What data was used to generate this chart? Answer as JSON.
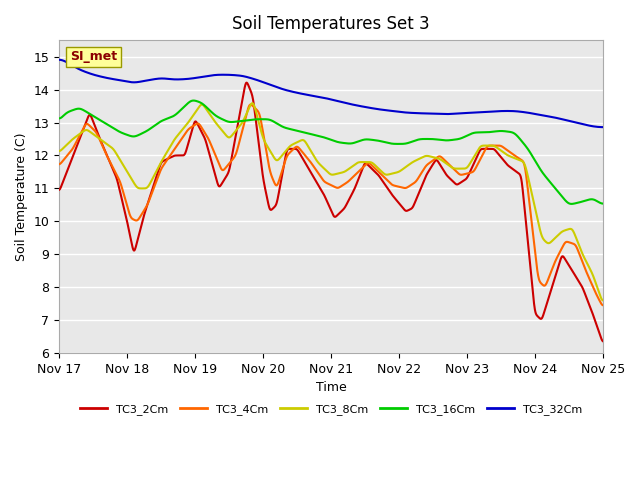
{
  "title": "Soil Temperatures Set 3",
  "xlabel": "Time",
  "ylabel": "Soil Temperature (C)",
  "ylim": [
    6.0,
    15.5
  ],
  "yticks": [
    6.0,
    7.0,
    8.0,
    9.0,
    10.0,
    11.0,
    12.0,
    13.0,
    14.0,
    15.0
  ],
  "xtick_labels": [
    "Nov 17",
    "Nov 18",
    "Nov 19",
    "Nov 20",
    "Nov 21",
    "Nov 22",
    "Nov 23",
    "Nov 24",
    "Nov 25"
  ],
  "colors": {
    "TC3_2Cm": "#cc0000",
    "TC3_4Cm": "#ff6600",
    "TC3_8Cm": "#cccc00",
    "TC3_16Cm": "#00cc00",
    "TC3_32Cm": "#0000cc"
  },
  "si_met_label": "SI_met",
  "bg_color": "#ffffff",
  "plot_bg_color": "#e8e8e8",
  "grid_color": "#ffffff",
  "annotation_bg": "#ffff99",
  "annotation_text_color": "#8b0000"
}
